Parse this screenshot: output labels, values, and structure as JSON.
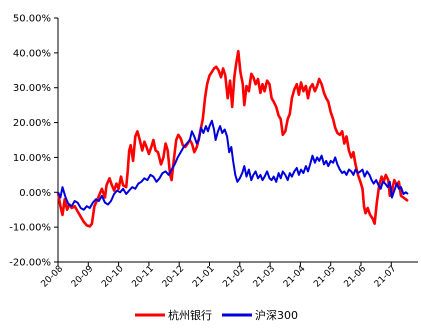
{
  "chart_data": {
    "type": "line",
    "x_ticks": [
      "20-08",
      "20-09",
      "20-10",
      "20-11",
      "20-12",
      "21-01",
      "21-02",
      "21-03",
      "21-04",
      "21-05",
      "21-06",
      "21-07"
    ],
    "y_ticks": [
      "50.00%",
      "40.00%",
      "30.00%",
      "20.00%",
      "10.00%",
      "0.00%",
      "-10.00%",
      "-20.00%"
    ],
    "ylim": [
      -20,
      50
    ],
    "xlim": [
      0,
      11.55
    ],
    "grid": false,
    "legend_placement": "bottom",
    "series": [
      {
        "name": "杭州银行",
        "color": "#ff0000",
        "points": [
          [
            0.0,
            0.0
          ],
          [
            0.08,
            -4.0
          ],
          [
            0.15,
            -6.5
          ],
          [
            0.22,
            -2.0
          ],
          [
            0.3,
            -5.0
          ],
          [
            0.38,
            -3.5
          ],
          [
            0.45,
            -4.5
          ],
          [
            0.55,
            -4.0
          ],
          [
            0.65,
            -5.5
          ],
          [
            0.75,
            -7.0
          ],
          [
            0.85,
            -8.5
          ],
          [
            0.95,
            -9.5
          ],
          [
            1.05,
            -9.8
          ],
          [
            1.12,
            -9.0
          ],
          [
            1.2,
            -4.0
          ],
          [
            1.28,
            -2.5
          ],
          [
            1.35,
            -1.0
          ],
          [
            1.45,
            1.0
          ],
          [
            1.55,
            -1.5
          ],
          [
            1.6,
            2.0
          ],
          [
            1.7,
            4.0
          ],
          [
            1.78,
            2.0
          ],
          [
            1.85,
            0.5
          ],
          [
            1.93,
            2.5
          ],
          [
            2.0,
            1.0
          ],
          [
            2.08,
            4.5
          ],
          [
            2.15,
            2.0
          ],
          [
            2.25,
            1.5
          ],
          [
            2.3,
            6.0
          ],
          [
            2.35,
            12.0
          ],
          [
            2.4,
            13.5
          ],
          [
            2.48,
            9.0
          ],
          [
            2.55,
            16.0
          ],
          [
            2.62,
            17.5
          ],
          [
            2.7,
            15.0
          ],
          [
            2.78,
            12.0
          ],
          [
            2.85,
            14.5
          ],
          [
            2.92,
            13.0
          ],
          [
            3.0,
            11.0
          ],
          [
            3.08,
            13.0
          ],
          [
            3.15,
            15.0
          ],
          [
            3.22,
            12.0
          ],
          [
            3.3,
            11.5
          ],
          [
            3.4,
            8.0
          ],
          [
            3.48,
            10.0
          ],
          [
            3.55,
            14.0
          ],
          [
            3.62,
            12.0
          ],
          [
            3.7,
            5.0
          ],
          [
            3.75,
            3.5
          ],
          [
            3.82,
            9.0
          ],
          [
            3.9,
            15.0
          ],
          [
            3.97,
            16.5
          ],
          [
            4.05,
            15.5
          ],
          [
            4.12,
            13.5
          ],
          [
            4.2,
            13.0
          ],
          [
            4.28,
            14.0
          ],
          [
            4.35,
            15.0
          ],
          [
            4.42,
            14.0
          ],
          [
            4.5,
            11.5
          ],
          [
            4.58,
            13.0
          ],
          [
            4.65,
            15.5
          ],
          [
            4.72,
            18.5
          ],
          [
            4.78,
            21.0
          ],
          [
            4.85,
            27.0
          ],
          [
            4.92,
            31.0
          ],
          [
            5.0,
            33.5
          ],
          [
            5.08,
            34.5
          ],
          [
            5.15,
            35.5
          ],
          [
            5.22,
            36.0
          ],
          [
            5.3,
            35.0
          ],
          [
            5.38,
            33.0
          ],
          [
            5.45,
            35.5
          ],
          [
            5.52,
            33.5
          ],
          [
            5.6,
            27.0
          ],
          [
            5.68,
            32.0
          ],
          [
            5.75,
            24.5
          ],
          [
            5.82,
            33.0
          ],
          [
            5.88,
            37.0
          ],
          [
            5.95,
            40.5
          ],
          [
            6.02,
            34.5
          ],
          [
            6.1,
            31.0
          ],
          [
            6.15,
            25.0
          ],
          [
            6.22,
            30.5
          ],
          [
            6.3,
            29.0
          ],
          [
            6.38,
            34.0
          ],
          [
            6.45,
            33.0
          ],
          [
            6.52,
            31.0
          ],
          [
            6.6,
            32.5
          ],
          [
            6.68,
            28.5
          ],
          [
            6.75,
            31.0
          ],
          [
            6.82,
            29.0
          ],
          [
            6.9,
            32.0
          ],
          [
            6.98,
            31.0
          ],
          [
            7.05,
            27.0
          ],
          [
            7.12,
            26.0
          ],
          [
            7.2,
            24.5
          ],
          [
            7.28,
            22.0
          ],
          [
            7.35,
            21.0
          ],
          [
            7.42,
            16.5
          ],
          [
            7.5,
            17.5
          ],
          [
            7.58,
            21.0
          ],
          [
            7.65,
            22.5
          ],
          [
            7.72,
            27.0
          ],
          [
            7.8,
            29.5
          ],
          [
            7.88,
            31.0
          ],
          [
            7.95,
            28.0
          ],
          [
            8.02,
            31.5
          ],
          [
            8.1,
            29.0
          ],
          [
            8.18,
            30.5
          ],
          [
            8.25,
            27.0
          ],
          [
            8.32,
            30.0
          ],
          [
            8.4,
            31.0
          ],
          [
            8.48,
            29.0
          ],
          [
            8.55,
            30.5
          ],
          [
            8.62,
            32.5
          ],
          [
            8.7,
            31.0
          ],
          [
            8.78,
            28.5
          ],
          [
            8.85,
            27.0
          ],
          [
            8.92,
            26.0
          ],
          [
            9.0,
            23.0
          ],
          [
            9.08,
            21.0
          ],
          [
            9.15,
            18.5
          ],
          [
            9.22,
            17.0
          ],
          [
            9.3,
            16.5
          ],
          [
            9.38,
            17.5
          ],
          [
            9.45,
            14.0
          ],
          [
            9.52,
            16.0
          ],
          [
            9.6,
            12.0
          ],
          [
            9.68,
            10.0
          ],
          [
            9.75,
            11.5
          ],
          [
            9.82,
            8.0
          ],
          [
            9.9,
            5.0
          ],
          [
            9.98,
            3.0
          ],
          [
            10.05,
            1.0
          ],
          [
            10.1,
            -4.0
          ],
          [
            10.15,
            -6.0
          ],
          [
            10.22,
            -4.5
          ],
          [
            10.3,
            -6.5
          ],
          [
            10.38,
            -7.5
          ],
          [
            10.45,
            -9.0
          ],
          [
            10.52,
            -3.0
          ],
          [
            10.6,
            2.0
          ],
          [
            10.68,
            4.5
          ],
          [
            10.75,
            3.0
          ],
          [
            10.82,
            5.0
          ],
          [
            10.9,
            3.5
          ],
          [
            10.95,
            -1.0
          ],
          [
            11.02,
            0.5
          ],
          [
            11.1,
            3.5
          ],
          [
            11.18,
            2.0
          ],
          [
            11.25,
            3.0
          ],
          [
            11.32,
            -1.0
          ],
          [
            11.4,
            -1.5
          ],
          [
            11.48,
            -2.0
          ],
          [
            11.55,
            -2.5
          ]
        ]
      },
      {
        "name": "沪深300",
        "color": "#0000dd",
        "points": [
          [
            0.0,
            0.0
          ],
          [
            0.08,
            -1.5
          ],
          [
            0.15,
            1.5
          ],
          [
            0.25,
            -1.5
          ],
          [
            0.35,
            -3.5
          ],
          [
            0.45,
            -4.0
          ],
          [
            0.55,
            -2.5
          ],
          [
            0.65,
            -3.0
          ],
          [
            0.75,
            -4.5
          ],
          [
            0.85,
            -5.0
          ],
          [
            0.95,
            -4.0
          ],
          [
            1.05,
            -4.5
          ],
          [
            1.15,
            -3.0
          ],
          [
            1.25,
            -2.0
          ],
          [
            1.35,
            -2.5
          ],
          [
            1.45,
            -1.0
          ],
          [
            1.55,
            -3.0
          ],
          [
            1.65,
            -3.5
          ],
          [
            1.75,
            -2.5
          ],
          [
            1.85,
            -0.5
          ],
          [
            1.95,
            0.5
          ],
          [
            2.05,
            0.0
          ],
          [
            2.15,
            1.0
          ],
          [
            2.25,
            -0.5
          ],
          [
            2.35,
            0.5
          ],
          [
            2.45,
            1.5
          ],
          [
            2.55,
            1.0
          ],
          [
            2.65,
            2.5
          ],
          [
            2.75,
            3.0
          ],
          [
            2.85,
            4.0
          ],
          [
            2.95,
            3.5
          ],
          [
            3.05,
            5.0
          ],
          [
            3.15,
            4.5
          ],
          [
            3.25,
            3.0
          ],
          [
            3.35,
            4.0
          ],
          [
            3.45,
            5.5
          ],
          [
            3.55,
            6.0
          ],
          [
            3.65,
            5.0
          ],
          [
            3.75,
            6.5
          ],
          [
            3.85,
            8.0
          ],
          [
            3.95,
            10.0
          ],
          [
            4.05,
            11.5
          ],
          [
            4.15,
            13.0
          ],
          [
            4.25,
            14.0
          ],
          [
            4.35,
            15.0
          ],
          [
            4.42,
            17.5
          ],
          [
            4.5,
            16.0
          ],
          [
            4.58,
            14.0
          ],
          [
            4.65,
            15.0
          ],
          [
            4.72,
            18.5
          ],
          [
            4.8,
            17.0
          ],
          [
            4.88,
            19.0
          ],
          [
            4.95,
            17.5
          ],
          [
            5.0,
            19.0
          ],
          [
            5.08,
            20.5
          ],
          [
            5.15,
            18.0
          ],
          [
            5.2,
            15.0
          ],
          [
            5.28,
            17.5
          ],
          [
            5.35,
            19.0
          ],
          [
            5.42,
            17.0
          ],
          [
            5.5,
            18.0
          ],
          [
            5.58,
            16.0
          ],
          [
            5.65,
            11.5
          ],
          [
            5.72,
            13.0
          ],
          [
            5.78,
            9.0
          ],
          [
            5.85,
            5.0
          ],
          [
            5.92,
            3.0
          ],
          [
            6.0,
            4.0
          ],
          [
            6.08,
            5.5
          ],
          [
            6.15,
            7.5
          ],
          [
            6.22,
            4.5
          ],
          [
            6.3,
            6.5
          ],
          [
            6.38,
            3.5
          ],
          [
            6.45,
            5.0
          ],
          [
            6.52,
            6.0
          ],
          [
            6.6,
            4.0
          ],
          [
            6.68,
            5.0
          ],
          [
            6.75,
            3.5
          ],
          [
            6.82,
            4.5
          ],
          [
            6.9,
            6.0
          ],
          [
            6.98,
            4.0
          ],
          [
            7.05,
            3.5
          ],
          [
            7.12,
            4.5
          ],
          [
            7.2,
            3.0
          ],
          [
            7.28,
            5.5
          ],
          [
            7.35,
            4.0
          ],
          [
            7.42,
            6.0
          ],
          [
            7.5,
            5.0
          ],
          [
            7.58,
            3.5
          ],
          [
            7.65,
            5.5
          ],
          [
            7.72,
            4.5
          ],
          [
            7.8,
            6.0
          ],
          [
            7.88,
            7.0
          ],
          [
            7.95,
            5.0
          ],
          [
            8.02,
            6.5
          ],
          [
            8.1,
            5.5
          ],
          [
            8.18,
            7.5
          ],
          [
            8.25,
            6.0
          ],
          [
            8.32,
            8.0
          ],
          [
            8.4,
            10.5
          ],
          [
            8.48,
            8.5
          ],
          [
            8.55,
            10.0
          ],
          [
            8.62,
            9.0
          ],
          [
            8.7,
            10.5
          ],
          [
            8.78,
            8.0
          ],
          [
            8.85,
            9.0
          ],
          [
            8.92,
            7.5
          ],
          [
            9.0,
            9.0
          ],
          [
            9.08,
            8.5
          ],
          [
            9.15,
            10.0
          ],
          [
            9.22,
            8.0
          ],
          [
            9.3,
            6.5
          ],
          [
            9.38,
            5.5
          ],
          [
            9.45,
            6.0
          ],
          [
            9.52,
            5.0
          ],
          [
            9.6,
            6.5
          ],
          [
            9.68,
            6.0
          ],
          [
            9.75,
            5.0
          ],
          [
            9.82,
            6.5
          ],
          [
            9.9,
            5.5
          ],
          [
            9.98,
            6.0
          ],
          [
            10.05,
            6.5
          ],
          [
            10.12,
            4.5
          ],
          [
            10.2,
            6.0
          ],
          [
            10.28,
            5.0
          ],
          [
            10.35,
            3.5
          ],
          [
            10.42,
            2.5
          ],
          [
            10.5,
            3.5
          ],
          [
            10.58,
            2.0
          ],
          [
            10.65,
            1.0
          ],
          [
            10.72,
            3.0
          ],
          [
            10.8,
            2.5
          ],
          [
            10.88,
            1.5
          ],
          [
            10.95,
            3.0
          ],
          [
            11.02,
            -1.5
          ],
          [
            11.1,
            0.5
          ],
          [
            11.18,
            2.5
          ],
          [
            11.25,
            1.0
          ],
          [
            11.32,
            1.5
          ],
          [
            11.4,
            -0.5
          ],
          [
            11.48,
            0.0
          ],
          [
            11.55,
            -0.5
          ]
        ]
      }
    ]
  }
}
